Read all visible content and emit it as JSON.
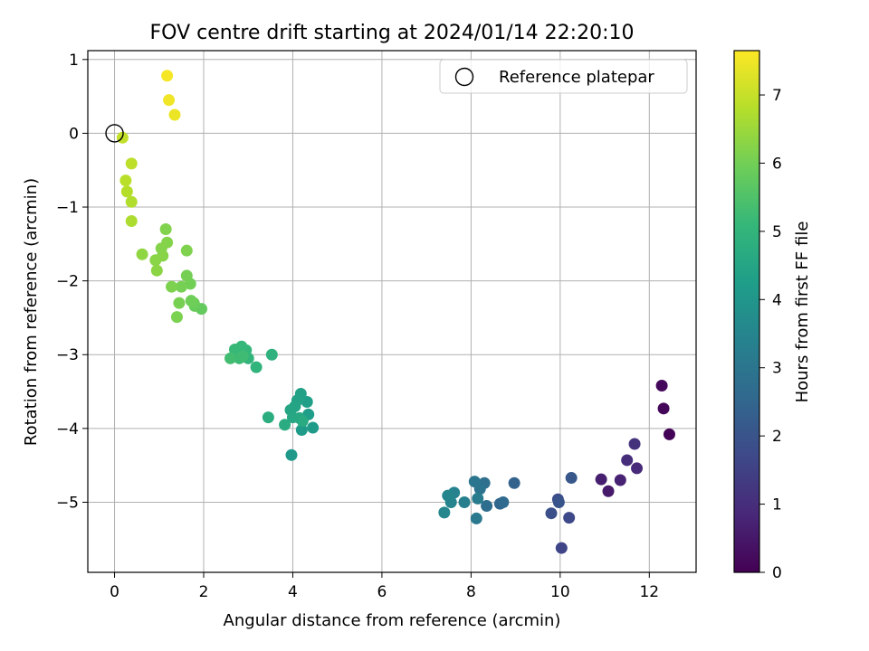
{
  "chart_data": {
    "type": "scatter",
    "title": "FOV centre drift starting at 2024/01/14 22:20:10",
    "xlabel": "Angular distance from reference (arcmin)",
    "ylabel": "Rotation from reference (arcmin)",
    "xlim": [
      -0.6,
      13.05
    ],
    "ylim": [
      -5.95,
      1.12
    ],
    "xticks": [
      0,
      2,
      4,
      6,
      8,
      10,
      12
    ],
    "yticks": [
      1,
      0,
      -1,
      -2,
      -3,
      -4,
      -5
    ],
    "xtick_labels": [
      "0",
      "2",
      "4",
      "6",
      "8",
      "10",
      "12"
    ],
    "ytick_labels": [
      "1",
      "0",
      "−1",
      "−2",
      "−3",
      "−4",
      "−5"
    ],
    "grid": true,
    "legend": {
      "placement": "top-right",
      "label": "Reference platepar"
    },
    "reference_point": {
      "x": 0,
      "y": 0
    },
    "colorbar": {
      "label": "Hours from first FF file",
      "range": [
        0,
        7.65
      ],
      "ticks": [
        0,
        1,
        2,
        3,
        4,
        5,
        6,
        7
      ],
      "tick_labels": [
        "0",
        "1",
        "2",
        "3",
        "4",
        "5",
        "6",
        "7"
      ],
      "colormap": "viridis"
    },
    "series": [
      {
        "points": [
          {
            "x": 12.45,
            "y": -4.08,
            "h": 0.05
          },
          {
            "x": 12.32,
            "y": -3.73,
            "h": 0.12
          },
          {
            "x": 12.28,
            "y": -3.42,
            "h": 0.18
          },
          {
            "x": 11.08,
            "y": -4.85,
            "h": 0.55
          },
          {
            "x": 10.92,
            "y": -4.69,
            "h": 0.65
          },
          {
            "x": 11.35,
            "y": -4.7,
            "h": 0.75
          },
          {
            "x": 11.72,
            "y": -4.54,
            "h": 0.9
          },
          {
            "x": 11.5,
            "y": -4.43,
            "h": 1.0
          },
          {
            "x": 11.67,
            "y": -4.21,
            "h": 1.1
          },
          {
            "x": 10.03,
            "y": -5.62,
            "h": 1.6
          },
          {
            "x": 10.2,
            "y": -5.21,
            "h": 1.7
          },
          {
            "x": 9.95,
            "y": -4.96,
            "h": 1.8
          },
          {
            "x": 9.8,
            "y": -5.15,
            "h": 1.9
          },
          {
            "x": 9.97,
            "y": -5.0,
            "h": 2.0
          },
          {
            "x": 10.25,
            "y": -4.67,
            "h": 2.1
          },
          {
            "x": 8.97,
            "y": -4.74,
            "h": 2.4
          },
          {
            "x": 8.65,
            "y": -5.02,
            "h": 2.5
          },
          {
            "x": 8.72,
            "y": -5.0,
            "h": 2.6
          },
          {
            "x": 8.35,
            "y": -5.05,
            "h": 2.7
          },
          {
            "x": 8.3,
            "y": -4.74,
            "h": 2.8
          },
          {
            "x": 8.2,
            "y": -4.82,
            "h": 2.9
          },
          {
            "x": 8.08,
            "y": -4.72,
            "h": 3.0
          },
          {
            "x": 8.12,
            "y": -5.22,
            "h": 3.1
          },
          {
            "x": 8.15,
            "y": -4.95,
            "h": 3.2
          },
          {
            "x": 7.85,
            "y": -5.0,
            "h": 3.3
          },
          {
            "x": 7.62,
            "y": -4.87,
            "h": 3.4
          },
          {
            "x": 7.55,
            "y": -5.0,
            "h": 3.45
          },
          {
            "x": 7.48,
            "y": -4.91,
            "h": 3.5
          },
          {
            "x": 7.4,
            "y": -5.14,
            "h": 3.55
          },
          {
            "x": 3.97,
            "y": -4.36,
            "h": 4.1
          },
          {
            "x": 4.45,
            "y": -3.99,
            "h": 4.15
          },
          {
            "x": 4.2,
            "y": -4.02,
            "h": 4.2
          },
          {
            "x": 4.35,
            "y": -3.81,
            "h": 4.25
          },
          {
            "x": 4.32,
            "y": -3.64,
            "h": 4.3
          },
          {
            "x": 4.18,
            "y": -3.53,
            "h": 4.35
          },
          {
            "x": 4.1,
            "y": -3.62,
            "h": 4.4
          },
          {
            "x": 4.05,
            "y": -3.7,
            "h": 4.45
          },
          {
            "x": 3.95,
            "y": -3.75,
            "h": 4.5
          },
          {
            "x": 4.0,
            "y": -3.85,
            "h": 4.55
          },
          {
            "x": 4.15,
            "y": -3.86,
            "h": 4.6
          },
          {
            "x": 4.22,
            "y": -3.9,
            "h": 4.65
          },
          {
            "x": 3.82,
            "y": -3.95,
            "h": 4.7
          },
          {
            "x": 3.45,
            "y": -3.85,
            "h": 4.75
          },
          {
            "x": 3.53,
            "y": -3.0,
            "h": 4.9
          },
          {
            "x": 3.18,
            "y": -3.17,
            "h": 4.95
          },
          {
            "x": 3.0,
            "y": -3.05,
            "h": 5.0
          },
          {
            "x": 2.95,
            "y": -2.94,
            "h": 5.05
          },
          {
            "x": 2.85,
            "y": -2.89,
            "h": 5.1
          },
          {
            "x": 2.7,
            "y": -2.93,
            "h": 5.15
          },
          {
            "x": 2.8,
            "y": -3.05,
            "h": 5.2
          },
          {
            "x": 2.88,
            "y": -3.02,
            "h": 5.25
          },
          {
            "x": 2.6,
            "y": -3.05,
            "h": 5.3
          },
          {
            "x": 1.95,
            "y": -2.38,
            "h": 5.8
          },
          {
            "x": 1.8,
            "y": -2.34,
            "h": 5.85
          },
          {
            "x": 1.78,
            "y": -2.3,
            "h": 5.9
          },
          {
            "x": 1.72,
            "y": -2.27,
            "h": 5.95
          },
          {
            "x": 1.7,
            "y": -2.04,
            "h": 6.0
          },
          {
            "x": 1.62,
            "y": -1.93,
            "h": 6.02
          },
          {
            "x": 1.5,
            "y": -2.08,
            "h": 6.05
          },
          {
            "x": 1.45,
            "y": -2.3,
            "h": 6.07
          },
          {
            "x": 1.4,
            "y": -2.49,
            "h": 6.1
          },
          {
            "x": 1.28,
            "y": -2.08,
            "h": 6.12
          },
          {
            "x": 1.62,
            "y": -1.59,
            "h": 6.15
          },
          {
            "x": 1.15,
            "y": -1.3,
            "h": 6.18
          },
          {
            "x": 1.18,
            "y": -1.48,
            "h": 6.2
          },
          {
            "x": 1.05,
            "y": -1.56,
            "h": 6.22
          },
          {
            "x": 1.08,
            "y": -1.66,
            "h": 6.25
          },
          {
            "x": 0.92,
            "y": -1.72,
            "h": 6.28
          },
          {
            "x": 0.95,
            "y": -1.86,
            "h": 6.3
          },
          {
            "x": 0.62,
            "y": -1.64,
            "h": 6.35
          },
          {
            "x": 0.38,
            "y": -1.19,
            "h": 6.7
          },
          {
            "x": 0.38,
            "y": -0.93,
            "h": 6.75
          },
          {
            "x": 0.28,
            "y": -0.79,
            "h": 6.8
          },
          {
            "x": 0.25,
            "y": -0.64,
            "h": 6.85
          },
          {
            "x": 0.38,
            "y": -0.41,
            "h": 6.9
          },
          {
            "x": 0.18,
            "y": -0.06,
            "h": 6.95
          },
          {
            "x": 1.35,
            "y": 0.25,
            "h": 7.45
          },
          {
            "x": 1.22,
            "y": 0.45,
            "h": 7.5
          },
          {
            "x": 1.18,
            "y": 0.78,
            "h": 7.55
          }
        ]
      }
    ]
  }
}
